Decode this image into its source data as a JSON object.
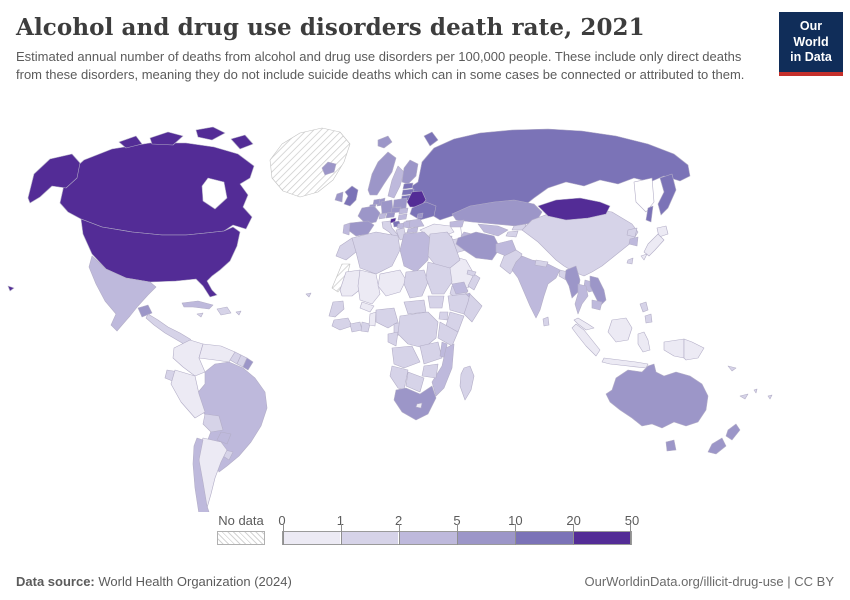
{
  "header": {
    "title": "Alcohol and drug use disorders death rate, 2021",
    "subtitle": "Estimated annual number of deaths from alcohol and drug use disorders per 100,000 people. These include only direct deaths from these disorders, meaning they do not include suicide deaths which can in some cases be connected or attributed to them.",
    "logo": {
      "line1": "Our World",
      "line2": "in Data",
      "bg": "#102D59",
      "accent": "#C5302B"
    }
  },
  "legend": {
    "no_data_label": "No data",
    "tick_labels": [
      "0",
      "1",
      "2",
      "5",
      "10",
      "20",
      "50"
    ],
    "bins_order": [
      "bin0",
      "bin1",
      "bin2",
      "bin3",
      "bin4",
      "bin5"
    ],
    "palette": {
      "bin0": "#ECEAF4",
      "bin1": "#D6D3E8",
      "bin2": "#BEB9DC",
      "bin3": "#9C96C8",
      "bin4": "#7B73B7",
      "bin5": "#532C96"
    }
  },
  "chart_data": {
    "type": "choropleth-map",
    "title": "Alcohol and drug use disorders death rate, 2021",
    "unit": "deaths per 100,000 people",
    "legend_bins": [
      "0-1",
      "1-2",
      "2-5",
      "5-10",
      "10-20",
      "20-50"
    ],
    "no_data": [
      "greenland",
      "wsahara"
    ],
    "notes": "bin0=0-1, bin1=1-2, bin2=2-5, bin3=5-10, bin4=10-20, bin5=20-50"
  },
  "map": {
    "regions": {
      "greenland": "nodata",
      "wsahara": "nodata",
      "canada": "bin5",
      "arctic-a": "bin5",
      "arctic-b": "bin5",
      "arctic-c": "bin5",
      "arctic-d": "bin5",
      "alaska": "bin5",
      "usa": "bin5",
      "hawaii": "bin5",
      "mexico": "bin2",
      "guatemala": "bin3",
      "central-america": "bin1",
      "cuba": "bin2",
      "hispaniola": "bin1",
      "jamaica": "bin1",
      "puerto-rico": "bin1",
      "cape-verde": "bin1",
      "colombia": "bin0",
      "venezuela": "bin0",
      "guyana": "bin1",
      "suriname": "bin1",
      "french-guiana": "bin3",
      "brazil": "bin2",
      "ecuador": "bin1",
      "peru": "bin0",
      "bolivia": "bin1",
      "paraguay": "bin2",
      "uruguay": "bin1",
      "argentina": "bin0",
      "chile": "bin2",
      "iceland": "bin3",
      "svalbard": "bin3",
      "norway": "bin3",
      "sweden": "bin2",
      "finland": "bin3",
      "denmark": "bin3",
      "uk": "bin4",
      "ireland": "bin3",
      "estonia": "bin4",
      "latvia": "bin4",
      "lithuania": "bin4",
      "belarus": "bin5",
      "poland": "bin3",
      "germany": "bin3",
      "netherlands": "bin3",
      "belgium": "bin3",
      "france": "bin3",
      "switzerland": "bin2",
      "austria": "bin3",
      "czechia": "bin3",
      "slovakia": "bin2",
      "hungary": "bin2",
      "ukraine": "bin4",
      "moldova": "bin3",
      "romania": "bin2",
      "slovenia": "bin5",
      "croatia": "bin4",
      "bosnia": "bin2",
      "serbia": "bin2",
      "bulgaria": "bin2",
      "greece": "bin1",
      "albania": "bin1",
      "italy": "bin1",
      "sicily": "bin1",
      "spain": "bin3",
      "portugal": "bin2",
      "russia": "bin4",
      "kamchatka": "bin4",
      "sakhalin": "bin4",
      "novaya-zemlya": "bin4",
      "kazakhstan": "bin3",
      "uzbekistan": "bin2",
      "turkmenistan": "bin2",
      "kyrgyzstan": "bin1",
      "tajikistan": "bin1",
      "caucasus": "bin2",
      "turkey": "bin0",
      "syria": "bin0",
      "levant": "bin0",
      "iraq": "bin1",
      "saudi": "bin0",
      "yemen": "bin1",
      "oman": "bin1",
      "uae": "bin1",
      "iran": "bin3",
      "afghanistan": "bin2",
      "pakistan": "bin1",
      "india": "bin2",
      "nepal": "bin1",
      "bangladesh": "bin1",
      "sri-lanka": "bin1",
      "myanmar": "bin3",
      "thailand": "bin2",
      "laos": "bin2",
      "vietnam": "bin3",
      "cambodia": "bin2",
      "malaysia": "bin0",
      "china": "bin1",
      "mongolia": "bin5",
      "north-korea": "bin1",
      "south-korea": "bin2",
      "japan-hokkaido": "bin0",
      "japan-honshu": "bin0",
      "japan-kyushu": "bin0",
      "taiwan": "bin1",
      "philippines-luzon": "bin1",
      "philippines-mindanao": "bin1",
      "sumatra": "bin0",
      "java": "bin0",
      "borneo": "bin0",
      "sulawesi": "bin0",
      "west-papua": "bin0",
      "png": "bin0",
      "morocco": "bin1",
      "algeria": "bin1",
      "tunisia": "bin1",
      "libya": "bin2",
      "egypt": "bin1",
      "mauritania": "bin0",
      "mali": "bin0",
      "burkina": "bin0",
      "niger": "bin0",
      "chad": "bin1",
      "sudan": "bin1",
      "senegal": "bin1",
      "guinea": "bin1",
      "ivory-coast": "bin1",
      "ghana": "bin1",
      "benin": "bin0",
      "nigeria": "bin1",
      "cameroon": "bin1",
      "car": "bin1",
      "south-sudan": "bin1",
      "eritrea": "bin2",
      "djibouti": "bin2",
      "ethiopia": "bin1",
      "somalia": "bin1",
      "kenya": "bin1",
      "uganda": "bin1",
      "tanzania": "bin1",
      "gabon": "bin1",
      "drc": "bin1",
      "angola": "bin1",
      "zambia": "bin1",
      "malawi": "bin2",
      "mozambique": "bin2",
      "zimbabwe": "bin1",
      "botswana": "bin1",
      "namibia": "bin1",
      "south-africa": "bin3",
      "lesotho": "bin0",
      "madagascar": "bin1",
      "australia": "bin3",
      "tasmania": "bin3",
      "nz-north": "bin3",
      "nz-south": "bin3",
      "new-caledonia": "bin1",
      "fiji": "bin1",
      "vanuatu": "bin1",
      "solomon": "bin1"
    }
  },
  "footer": {
    "source_label": "Data source:",
    "source_value": " World Health Organization (2024)",
    "credit": "OurWorldinData.org/illicit-drug-use | CC BY"
  }
}
